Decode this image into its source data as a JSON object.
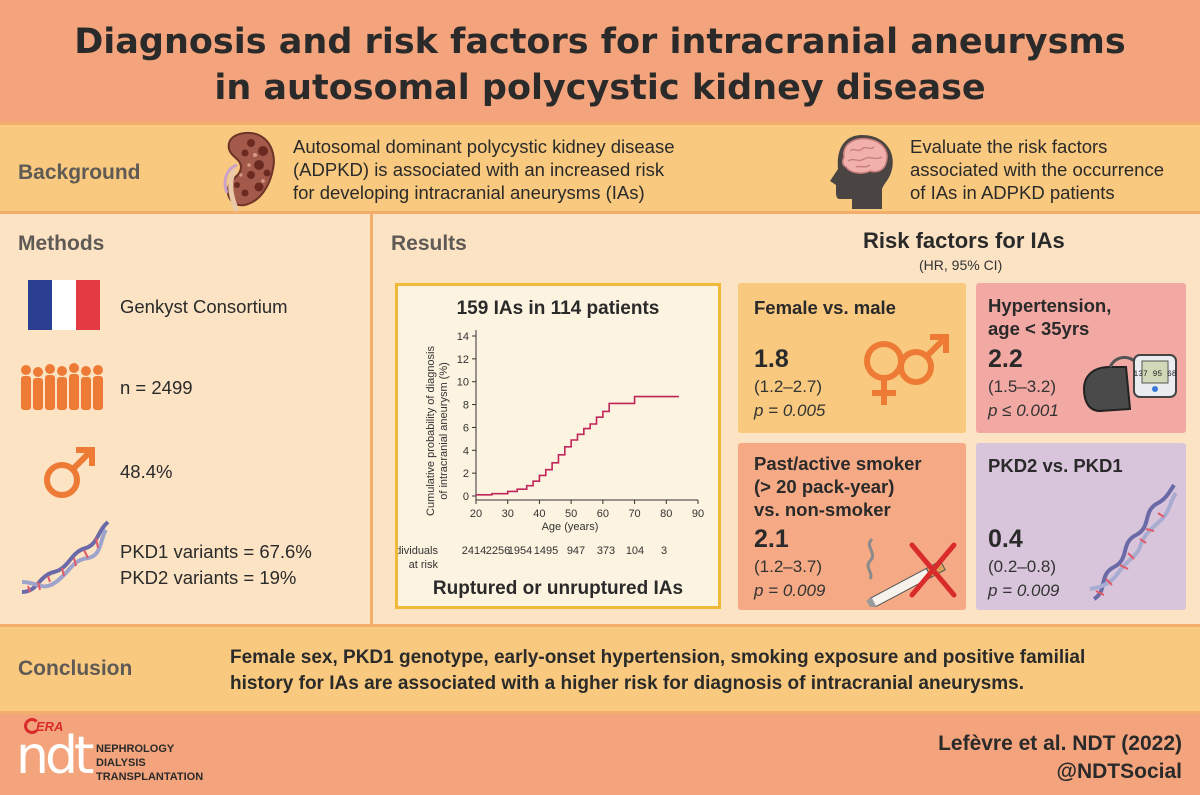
{
  "title": {
    "line1": "Diagnosis and risk factors for intracranial aneurysms",
    "line2": "in autosomal polycystic kidney disease"
  },
  "background": {
    "label": "Background",
    "left_text": [
      "Autosomal dominant polycystic kidney disease",
      "(ADPKD) is associated with an increased risk",
      "for developing intracranial aneurysms (IAs)"
    ],
    "right_text": [
      "Evaluate the risk factors",
      "associated with the occurrence",
      "of IAs in ADPKD patients"
    ]
  },
  "methods": {
    "label": "Methods",
    "consortium": "Genkyst Consortium",
    "n": "n = 2499",
    "male_pct": "48.4%",
    "pkd1": "PKD1 variants  =  67.6%",
    "pkd2": "PKD2 variants  = 19%"
  },
  "results": {
    "label": "Results",
    "chart_title": "159 IAs in 114 patients",
    "chart_footer": "Ruptured or unruptured IAs",
    "risk_title": "Risk factors for IAs",
    "risk_subtitle": "(HR, 95% CI)"
  },
  "chart_data": {
    "type": "line",
    "title": "159 IAs in 114 patients",
    "xlabel": "Age (years)",
    "ylabel": "Cumulative probability of diagnosis of intracranial aneurysm (%)",
    "xlim": [
      20,
      90
    ],
    "ylim": [
      0,
      14
    ],
    "x_ticks": [
      "20",
      "30",
      "40",
      "50",
      "60",
      "70",
      "80",
      "90"
    ],
    "y_ticks": [
      "0",
      "2",
      "4",
      "6",
      "8",
      "10",
      "12",
      "14"
    ],
    "series": [
      {
        "name": "Ruptured or unruptured IAs",
        "x": [
          18,
          25,
          30,
          33,
          36,
          38,
          40,
          42,
          44,
          46,
          48,
          50,
          52,
          54,
          56,
          58,
          60,
          62,
          65,
          70,
          72,
          84
        ],
        "y": [
          0.1,
          0.2,
          0.4,
          0.6,
          0.9,
          1.3,
          1.8,
          2.3,
          2.9,
          3.6,
          4.3,
          4.9,
          5.4,
          5.9,
          6.3,
          6.9,
          7.4,
          8.1,
          8.1,
          8.7,
          8.7,
          8.7
        ]
      }
    ],
    "at_risk_label_1": "Individuals",
    "at_risk_label_2": "at risk",
    "at_risk": [
      "2414",
      "2256",
      "1954",
      "1495",
      "947",
      "373",
      "104",
      "3"
    ]
  },
  "cards": {
    "female": {
      "title": "Female vs. male",
      "hr": "1.8",
      "ci": "(1.2–2.7)",
      "p": "p = 0.005",
      "color": "#f8c97e"
    },
    "hypertension": {
      "title1": "Hypertension,",
      "title2": "age < 35yrs",
      "hr": "2.2",
      "ci": "(1.5–3.2)",
      "p": "p ≤ 0.001",
      "color": "#f2a8a3"
    },
    "smoker": {
      "title1": "Past/active smoker",
      "title2": "(> 20 pack-year)",
      "title3": "vs. non-smoker",
      "hr": "2.1",
      "ci": "(1.2–3.7)",
      "p": "p = 0.009",
      "color": "#f5aa85"
    },
    "pkd2": {
      "title": "PKD2 vs. PKD1",
      "hr": "0.4",
      "ci": "(0.2–0.8)",
      "p": "p = 0.009",
      "color": "#d9c5db"
    }
  },
  "conclusion": {
    "label": "Conclusion",
    "line1": "Female sex, PKD1 genotype, early-onset hypertension, smoking exposure and positive familial",
    "line2": "history for IAs are associated with a higher risk for diagnosis of intracranial aneurysms."
  },
  "footer": {
    "era": "ERA",
    "ndt": "ndt",
    "journal1": "NEPHROLOGY",
    "journal2": "DIALYSIS",
    "journal3": "TRANSPLANTATION",
    "citation": "Lefèvre et al. NDT (2022)",
    "social": "@NDTSocial"
  },
  "monitor_readout": "137 95 68",
  "icons": [
    "kidney-icon",
    "brain-head-icon",
    "france-flag-icon",
    "crowd-icon",
    "male-symbol-icon",
    "dna-icon",
    "gender-symbols-icon",
    "blood-pressure-monitor-icon",
    "no-smoking-icon"
  ]
}
